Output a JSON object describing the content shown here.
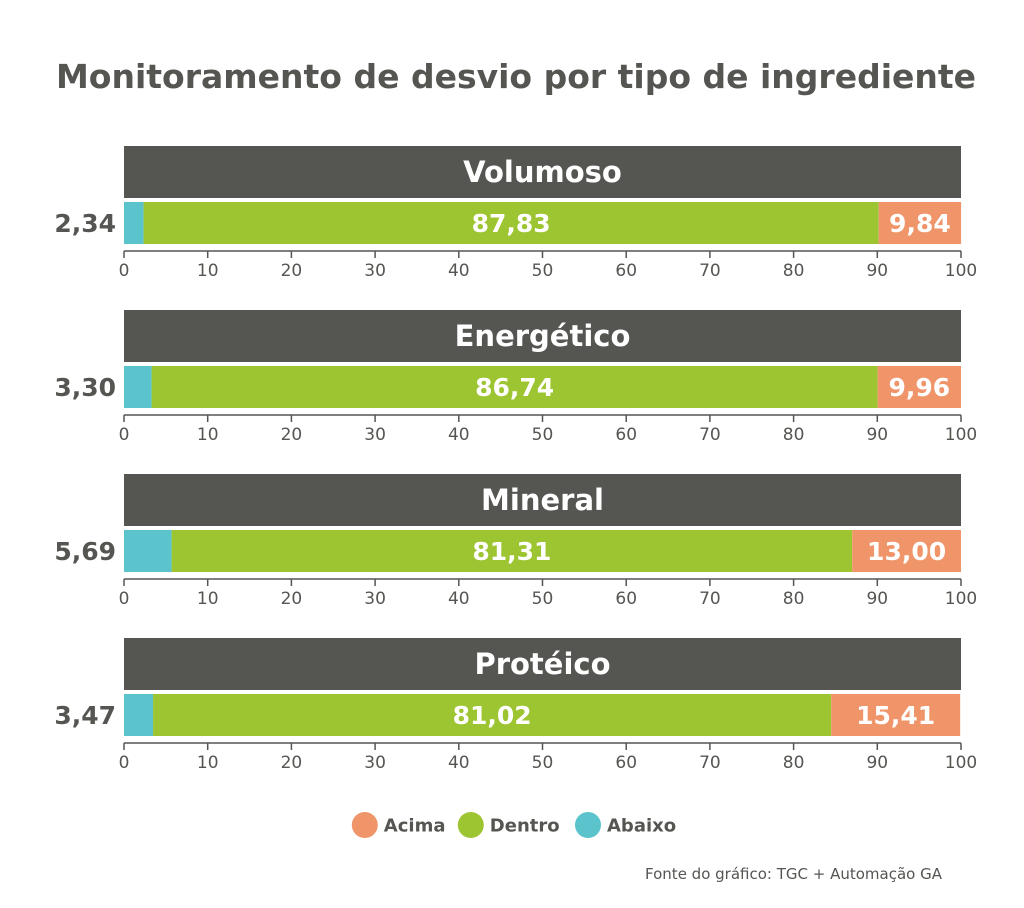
{
  "chart_data": {
    "type": "bar",
    "title": "Monitoramento de desvio por tipo de ingrediente",
    "xlim": [
      0,
      100
    ],
    "xticks": [
      "0",
      "10",
      "20",
      "30",
      "40",
      "50",
      "60",
      "70",
      "80",
      "90",
      "100"
    ],
    "stacked": true,
    "orientation": "horizontal",
    "panels": [
      {
        "name": "Volumoso",
        "abaixo": 2.34,
        "dentro": 87.83,
        "acima": 9.84,
        "labels": {
          "abaixo": "2,34",
          "dentro": "87,83",
          "acima": "9,84"
        }
      },
      {
        "name": "Energético",
        "abaixo": 3.3,
        "dentro": 86.74,
        "acima": 9.96,
        "labels": {
          "abaixo": "3,30",
          "dentro": "86,74",
          "acima": "9,96"
        }
      },
      {
        "name": "Mineral",
        "abaixo": 5.69,
        "dentro": 81.31,
        "acima": 13.0,
        "labels": {
          "abaixo": "5,69",
          "dentro": "81,31",
          "acima": "13,00"
        }
      },
      {
        "name": "Protéico",
        "abaixo": 3.47,
        "dentro": 81.02,
        "acima": 15.41,
        "labels": {
          "abaixo": "3,47",
          "dentro": "81,02",
          "acima": "15,41"
        }
      }
    ],
    "series": [
      {
        "key": "abaixo",
        "name": "Abaixo",
        "color": "#5bc3cc"
      },
      {
        "key": "dentro",
        "name": "Dentro",
        "color": "#9dc431"
      },
      {
        "key": "acima",
        "name": "Acima",
        "color": "#f0956a"
      }
    ],
    "legend": {
      "position": "bottom",
      "order": [
        "acima",
        "dentro",
        "abaixo"
      ]
    },
    "source": "Fonte do gráfico: TGC + Automação GA",
    "header_color": "#555552"
  }
}
